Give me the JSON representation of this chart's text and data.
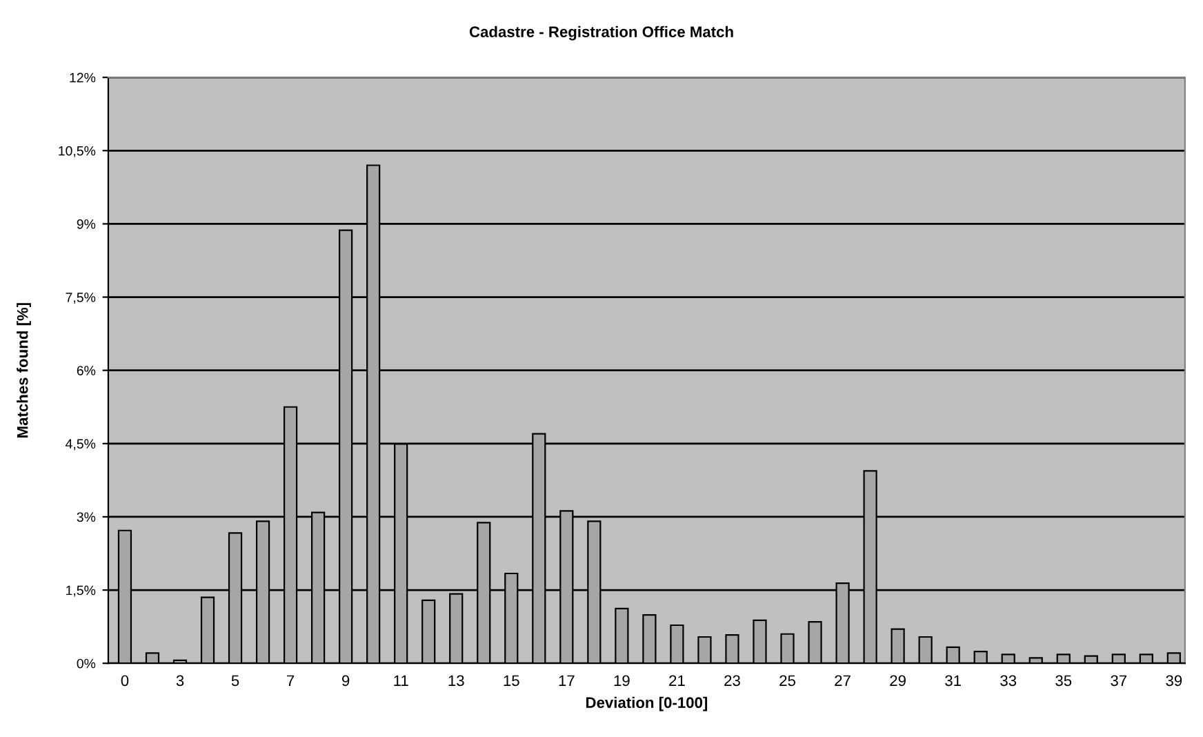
{
  "chart_data": {
    "type": "bar",
    "title": "Cadastre - Registration Office Match",
    "xlabel": "Deviation [0-100]",
    "ylabel": "Matches found [%]",
    "categories": [
      "0",
      null,
      "3",
      null,
      "5",
      null,
      "7",
      null,
      "9",
      null,
      "11",
      null,
      "13",
      null,
      "15",
      null,
      "17",
      null,
      "19",
      null,
      "21",
      null,
      "23",
      null,
      "25",
      null,
      "27",
      null,
      "29",
      null,
      "31",
      null,
      "33",
      null,
      "35",
      null,
      "37",
      null,
      "39"
    ],
    "values": [
      2.72,
      0.21,
      0.06,
      1.35,
      2.67,
      2.91,
      5.25,
      3.09,
      8.87,
      10.2,
      4.49,
      1.29,
      1.42,
      2.88,
      1.84,
      4.7,
      3.12,
      2.91,
      1.12,
      0.99,
      0.78,
      0.54,
      0.58,
      0.88,
      0.6,
      0.85,
      1.64,
      3.94,
      0.7,
      0.54,
      0.33,
      0.24,
      0.18,
      0.11,
      0.18,
      0.15,
      0.18,
      0.18,
      0.21
    ],
    "color": "#a6a6a6",
    "ylim": [
      0,
      12
    ],
    "yticks": [
      {
        "value": 0,
        "label": "0%"
      },
      {
        "value": 1.5,
        "label": "1,5%"
      },
      {
        "value": 3,
        "label": "3%"
      },
      {
        "value": 4.5,
        "label": "4,5%"
      },
      {
        "value": 6,
        "label": "6%"
      },
      {
        "value": 7.5,
        "label": "7,5%"
      },
      {
        "value": 9,
        "label": "9%"
      },
      {
        "value": 10.5,
        "label": "10,5%"
      },
      {
        "value": 12,
        "label": "12%"
      }
    ],
    "grid": "y"
  }
}
